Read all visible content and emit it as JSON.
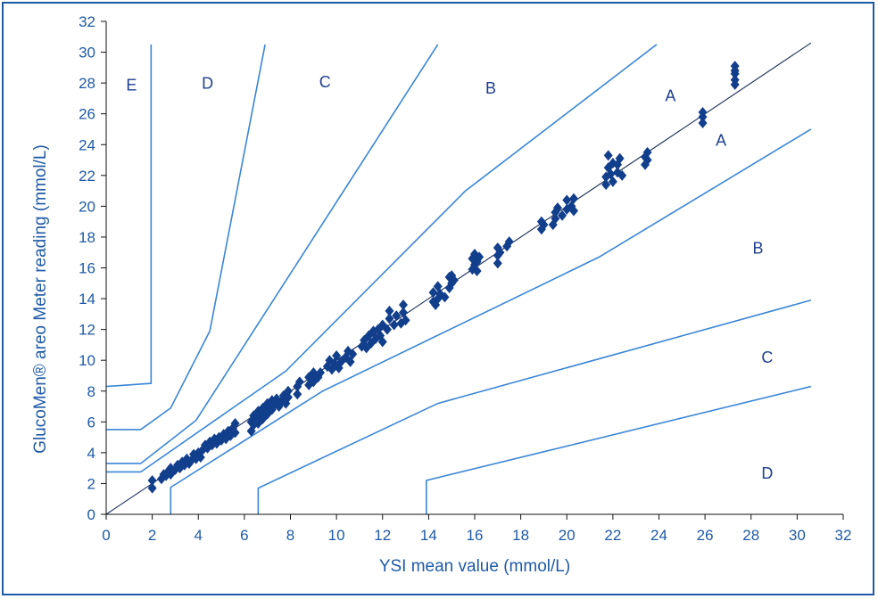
{
  "chart_data": {
    "type": "scatter",
    "xlabel": "YSI mean value (mmol/L)",
    "ylabel": "GlucoMen® areo Meter reading  (mmol/L)",
    "xlim": [
      0,
      32
    ],
    "ylim": [
      0,
      32
    ],
    "x_ticks": [
      0,
      2,
      4,
      6,
      8,
      10,
      12,
      14,
      16,
      18,
      20,
      22,
      24,
      26,
      28,
      30,
      32
    ],
    "y_ticks": [
      0,
      2,
      4,
      6,
      8,
      10,
      12,
      14,
      16,
      18,
      20,
      22,
      24,
      26,
      28,
      30,
      32
    ],
    "grid": false,
    "marker": "diamond",
    "colors": {
      "points": "#123f8c",
      "zone_lines": "#3a86d6",
      "identity_line": "#1a2d5a",
      "text": "#1f5aa6",
      "frame": "#1f5aa6"
    },
    "identity_line": [
      [
        0,
        0
      ],
      [
        30.6,
        30.6
      ]
    ],
    "zone_boundaries": [
      [
        [
          0,
          8.3
        ],
        [
          1.95,
          8.5
        ],
        [
          1.95,
          30.5
        ]
      ],
      [
        [
          0,
          5.5
        ],
        [
          1.5,
          5.5
        ],
        [
          2.8,
          6.9
        ],
        [
          4.5,
          11.9
        ],
        [
          6.9,
          30.5
        ]
      ],
      [
        [
          0,
          3.3
        ],
        [
          1.5,
          3.3
        ],
        [
          3.9,
          6.1
        ],
        [
          14.4,
          30.5
        ]
      ],
      [
        [
          0,
          2.75
        ],
        [
          1.5,
          2.75
        ],
        [
          7.8,
          9.3
        ],
        [
          15.6,
          21.0
        ],
        [
          23.9,
          30.5
        ]
      ],
      [
        [
          2.8,
          0
        ],
        [
          2.8,
          1.75
        ],
        [
          9.4,
          8.0
        ],
        [
          21.4,
          16.7
        ],
        [
          30.6,
          25.0
        ]
      ],
      [
        [
          6.6,
          0
        ],
        [
          6.6,
          1.7
        ],
        [
          14.4,
          7.2
        ],
        [
          30.6,
          13.9
        ]
      ],
      [
        [
          13.9,
          0
        ],
        [
          13.9,
          2.2
        ],
        [
          30.6,
          8.3
        ]
      ]
    ],
    "zone_labels": [
      {
        "label": "E",
        "x": 1.1,
        "y": 27.8
      },
      {
        "label": "D",
        "x": 4.4,
        "y": 27.9
      },
      {
        "label": "C",
        "x": 9.5,
        "y": 28.0
      },
      {
        "label": "B",
        "x": 16.7,
        "y": 27.6
      },
      {
        "label": "A",
        "x": 24.5,
        "y": 27.1
      },
      {
        "label": "A",
        "x": 26.7,
        "y": 24.2
      },
      {
        "label": "B",
        "x": 28.3,
        "y": 17.2
      },
      {
        "label": "C",
        "x": 28.7,
        "y": 10.1
      },
      {
        "label": "D",
        "x": 28.7,
        "y": 2.6
      }
    ],
    "points": [
      [
        2.0,
        1.7
      ],
      [
        2.0,
        2.2
      ],
      [
        2.4,
        2.3
      ],
      [
        2.5,
        2.6
      ],
      [
        2.6,
        2.5
      ],
      [
        2.7,
        2.8
      ],
      [
        2.8,
        2.6
      ],
      [
        2.8,
        3.0
      ],
      [
        3.0,
        2.9
      ],
      [
        3.1,
        3.2
      ],
      [
        3.2,
        3.0
      ],
      [
        3.3,
        3.4
      ],
      [
        3.4,
        3.2
      ],
      [
        3.5,
        3.6
      ],
      [
        3.6,
        3.3
      ],
      [
        3.7,
        3.5
      ],
      [
        3.8,
        3.9
      ],
      [
        3.9,
        3.6
      ],
      [
        4.0,
        4.0
      ],
      [
        4.1,
        3.7
      ],
      [
        4.2,
        4.2
      ],
      [
        4.3,
        4.5
      ],
      [
        4.4,
        4.3
      ],
      [
        4.5,
        4.7
      ],
      [
        4.6,
        4.5
      ],
      [
        4.7,
        4.9
      ],
      [
        4.8,
        4.6
      ],
      [
        4.9,
        5.0
      ],
      [
        5.0,
        4.8
      ],
      [
        5.1,
        5.2
      ],
      [
        5.2,
        4.9
      ],
      [
        5.3,
        5.4
      ],
      [
        5.4,
        5.1
      ],
      [
        5.5,
        5.6
      ],
      [
        5.6,
        5.3
      ],
      [
        5.6,
        5.9
      ],
      [
        6.3,
        5.4
      ],
      [
        6.3,
        6.0
      ],
      [
        6.4,
        5.8
      ],
      [
        6.4,
        6.4
      ],
      [
        6.5,
        6.2
      ],
      [
        6.6,
        6.7
      ],
      [
        6.6,
        5.9
      ],
      [
        6.7,
        6.4
      ],
      [
        6.8,
        6.9
      ],
      [
        6.8,
        6.2
      ],
      [
        6.9,
        6.6
      ],
      [
        7.0,
        7.2
      ],
      [
        7.0,
        6.5
      ],
      [
        7.1,
        6.9
      ],
      [
        7.2,
        7.4
      ],
      [
        7.2,
        6.8
      ],
      [
        7.3,
        7.1
      ],
      [
        7.4,
        7.5
      ],
      [
        7.5,
        7.0
      ],
      [
        7.6,
        7.3
      ],
      [
        7.7,
        7.7
      ],
      [
        7.8,
        7.2
      ],
      [
        7.9,
        7.6
      ],
      [
        7.9,
        8.0
      ],
      [
        8.3,
        7.8
      ],
      [
        8.3,
        8.3
      ],
      [
        8.4,
        8.6
      ],
      [
        8.8,
        8.4
      ],
      [
        8.8,
        8.9
      ],
      [
        9.0,
        8.6
      ],
      [
        9.0,
        9.2
      ],
      [
        9.2,
        8.9
      ],
      [
        9.3,
        9.2
      ],
      [
        9.6,
        9.6
      ],
      [
        9.7,
        10.0
      ],
      [
        9.8,
        9.4
      ],
      [
        9.9,
        9.8
      ],
      [
        10.0,
        10.3
      ],
      [
        10.1,
        9.5
      ],
      [
        10.2,
        9.9
      ],
      [
        10.4,
        10.2
      ],
      [
        10.5,
        10.6
      ],
      [
        10.6,
        9.9
      ],
      [
        10.7,
        10.4
      ],
      [
        11.1,
        10.9
      ],
      [
        11.2,
        11.3
      ],
      [
        11.3,
        10.8
      ],
      [
        11.4,
        11.6
      ],
      [
        11.5,
        11.1
      ],
      [
        11.6,
        11.9
      ],
      [
        11.7,
        11.4
      ],
      [
        11.8,
        12.0
      ],
      [
        11.9,
        11.6
      ],
      [
        12.0,
        12.3
      ],
      [
        12.0,
        11.2
      ],
      [
        12.2,
        12.0
      ],
      [
        12.3,
        12.7
      ],
      [
        12.3,
        13.2
      ],
      [
        12.5,
        12.3
      ],
      [
        12.6,
        12.9
      ],
      [
        12.8,
        12.4
      ],
      [
        12.9,
        13.1
      ],
      [
        12.9,
        13.6
      ],
      [
        13.0,
        12.6
      ],
      [
        14.2,
        13.8
      ],
      [
        14.2,
        14.4
      ],
      [
        14.3,
        13.6
      ],
      [
        14.4,
        14.0
      ],
      [
        14.4,
        14.8
      ],
      [
        14.5,
        14.3
      ],
      [
        14.7,
        14.1
      ],
      [
        14.9,
        14.7
      ],
      [
        14.9,
        15.4
      ],
      [
        15.0,
        15.0
      ],
      [
        15.0,
        15.5
      ],
      [
        15.1,
        15.2
      ],
      [
        15.9,
        15.9
      ],
      [
        15.9,
        16.6
      ],
      [
        16.0,
        16.2
      ],
      [
        16.0,
        16.9
      ],
      [
        16.1,
        16.4
      ],
      [
        16.1,
        15.8
      ],
      [
        16.2,
        16.7
      ],
      [
        17.0,
        16.3
      ],
      [
        17.0,
        16.8
      ],
      [
        17.0,
        17.3
      ],
      [
        17.1,
        17.0
      ],
      [
        17.4,
        17.4
      ],
      [
        17.5,
        17.7
      ],
      [
        18.9,
        18.5
      ],
      [
        18.9,
        19.0
      ],
      [
        19.0,
        18.8
      ],
      [
        19.4,
        18.8
      ],
      [
        19.5,
        19.2
      ],
      [
        19.5,
        19.6
      ],
      [
        19.6,
        19.9
      ],
      [
        19.8,
        19.4
      ],
      [
        20.0,
        19.8
      ],
      [
        20.0,
        20.4
      ],
      [
        20.2,
        20.0
      ],
      [
        20.3,
        20.5
      ],
      [
        20.3,
        19.7
      ],
      [
        21.7,
        21.4
      ],
      [
        21.7,
        21.9
      ],
      [
        21.8,
        22.5
      ],
      [
        21.8,
        23.3
      ],
      [
        21.9,
        22.1
      ],
      [
        22.0,
        22.8
      ],
      [
        22.0,
        21.6
      ],
      [
        22.2,
        22.2
      ],
      [
        22.2,
        22.7
      ],
      [
        22.3,
        23.1
      ],
      [
        22.4,
        22.0
      ],
      [
        23.4,
        22.7
      ],
      [
        23.4,
        23.2
      ],
      [
        23.5,
        23.5
      ],
      [
        23.5,
        23.0
      ],
      [
        25.9,
        25.4
      ],
      [
        25.9,
        25.8
      ],
      [
        25.9,
        26.1
      ],
      [
        27.3,
        27.9
      ],
      [
        27.3,
        28.2
      ],
      [
        27.3,
        28.6
      ],
      [
        27.3,
        28.8
      ],
      [
        27.3,
        29.1
      ]
    ]
  }
}
